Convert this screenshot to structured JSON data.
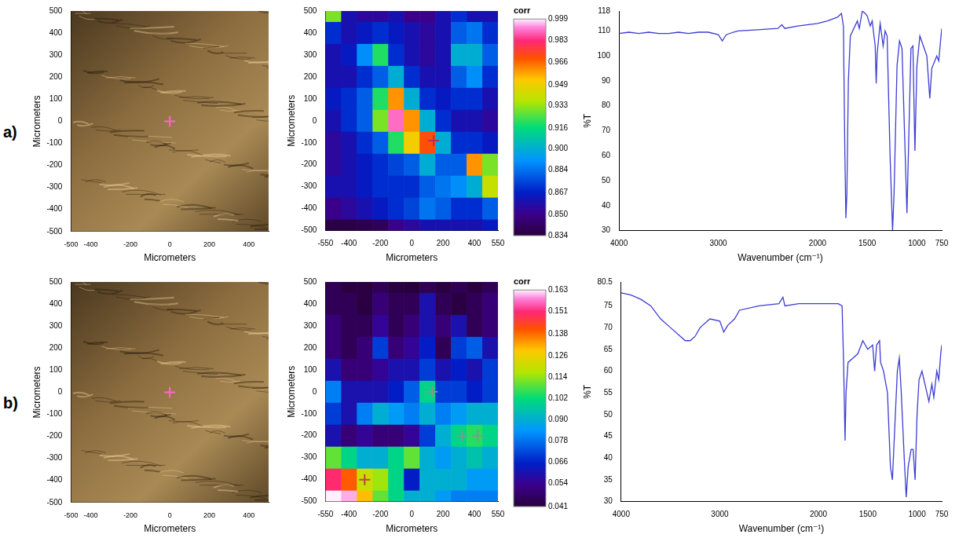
{
  "panel_labels": [
    "a)",
    "b)"
  ],
  "chart_data": [
    {
      "type": "image",
      "xlabel": "Micrometers",
      "ylabel": "Micrometers",
      "xlim": [
        -500,
        500
      ],
      "ylim": [
        -500,
        500
      ],
      "xticks": [
        -500,
        -400,
        -200,
        0,
        200,
        400
      ],
      "yticks": [
        -500,
        -400,
        -300,
        -200,
        -100,
        0,
        100,
        200,
        300,
        400,
        500
      ],
      "grid": false,
      "series": [
        {
          "x": [
            0
          ],
          "values": [
            0
          ],
          "marker": "cross",
          "color": "#ff66cc"
        }
      ]
    },
    {
      "type": "heatmap",
      "xlabel": "Micrometers",
      "ylabel": "Micrometers",
      "xlim": [
        -550,
        550
      ],
      "ylim": [
        -500,
        500
      ],
      "xticks": [
        -550,
        -400,
        -200,
        0,
        200,
        400,
        550
      ],
      "yticks": [
        -500,
        -400,
        -300,
        -200,
        -100,
        0,
        100,
        200,
        300,
        400,
        500
      ],
      "grid": false,
      "x": [
        -500,
        -400,
        -300,
        -200,
        -100,
        0,
        100,
        200,
        300,
        400,
        500
      ],
      "y": [
        500,
        400,
        300,
        200,
        100,
        0,
        -100,
        -200,
        -300,
        -400,
        -500
      ],
      "cells": [
        [
          0.93,
          0.86,
          0.855,
          0.855,
          0.86,
          0.85,
          0.85,
          0.86,
          0.87,
          0.86,
          0.86
        ],
        [
          0.87,
          0.86,
          0.865,
          0.87,
          0.865,
          0.86,
          0.855,
          0.86,
          0.88,
          0.885,
          0.87
        ],
        [
          0.86,
          0.865,
          0.89,
          0.92,
          0.87,
          0.86,
          0.855,
          0.86,
          0.9,
          0.9,
          0.88
        ],
        [
          0.86,
          0.86,
          0.87,
          0.88,
          0.9,
          0.87,
          0.86,
          0.86,
          0.88,
          0.89,
          0.87
        ],
        [
          0.865,
          0.87,
          0.88,
          0.92,
          0.96,
          0.9,
          0.87,
          0.865,
          0.87,
          0.87,
          0.86
        ],
        [
          0.86,
          0.87,
          0.88,
          0.93,
          0.99,
          0.96,
          0.9,
          0.87,
          0.86,
          0.86,
          0.855
        ],
        [
          0.855,
          0.86,
          0.87,
          0.88,
          0.92,
          0.95,
          0.97,
          0.9,
          0.87,
          0.87,
          0.865
        ],
        [
          0.855,
          0.86,
          0.865,
          0.87,
          0.875,
          0.88,
          0.9,
          0.88,
          0.88,
          0.96,
          0.93
        ],
        [
          0.86,
          0.86,
          0.865,
          0.87,
          0.87,
          0.87,
          0.88,
          0.885,
          0.89,
          0.9,
          0.94
        ],
        [
          0.85,
          0.855,
          0.86,
          0.865,
          0.87,
          0.875,
          0.885,
          0.88,
          0.87,
          0.87,
          0.88
        ],
        [
          0.836,
          0.836,
          0.838,
          0.84,
          0.85,
          0.855,
          0.86,
          0.86,
          0.86,
          0.86,
          0.865
        ]
      ],
      "colorbar": {
        "title": "corr",
        "range": [
          0.834,
          0.999
        ],
        "ticks": [
          0.834,
          {
            "value": 0.85,
            "label": "0.850"
          },
          0.867,
          0.884,
          {
            "value": 0.9,
            "label": "0.900"
          },
          0.916,
          0.933,
          0.949,
          0.966,
          0.983,
          0.999
        ]
      },
      "series": [
        {
          "x": [
            140
          ],
          "values": [
            -90
          ],
          "marker": "cross",
          "color": "#b03060"
        }
      ]
    },
    {
      "type": "line",
      "xlabel": "Wavenumber (cm⁻¹)",
      "ylabel": "%T",
      "xlim": [
        4000,
        750
      ],
      "ylim": [
        30,
        118
      ],
      "xticks": [
        4000,
        3000,
        2000,
        1500,
        1000,
        750
      ],
      "yticks": [
        30,
        40,
        50,
        60,
        70,
        80,
        90,
        100,
        110,
        118
      ],
      "grid": false,
      "color": "#3c3cd2",
      "x": [
        4000,
        3900,
        3800,
        3700,
        3600,
        3500,
        3400,
        3300,
        3200,
        3100,
        3000,
        2960,
        2920,
        2850,
        2800,
        2600,
        2400,
        2360,
        2330,
        2200,
        2000,
        1900,
        1800,
        1760,
        1740,
        1725,
        1715,
        1705,
        1690,
        1670,
        1600,
        1580,
        1550,
        1520,
        1500,
        1470,
        1450,
        1420,
        1410,
        1400,
        1370,
        1340,
        1320,
        1300,
        1270,
        1245,
        1230,
        1200,
        1175,
        1150,
        1125,
        1100,
        1080,
        1060,
        1040,
        1020,
        1000,
        970,
        900,
        870,
        850,
        800,
        780,
        750
      ],
      "values": [
        109,
        109.5,
        109,
        109.5,
        109,
        109,
        109.5,
        109,
        109.5,
        109.5,
        108.5,
        106,
        108.5,
        109.5,
        110,
        110.5,
        111,
        112.5,
        111,
        112,
        113,
        114,
        115.5,
        117,
        112,
        60,
        35,
        45,
        90,
        108,
        114,
        111,
        118,
        117,
        116,
        112,
        114,
        104,
        89,
        101,
        113,
        104,
        110,
        108,
        60,
        30,
        45,
        96,
        106,
        103,
        70,
        37,
        70,
        103,
        104,
        62,
        96,
        108,
        100,
        83,
        95,
        100,
        98,
        111
      ]
    },
    {
      "type": "image",
      "xlabel": "Micrometers",
      "ylabel": "Micrometers",
      "xlim": [
        -500,
        500
      ],
      "ylim": [
        -500,
        500
      ],
      "xticks": [
        -500,
        -400,
        -200,
        0,
        200,
        400
      ],
      "yticks": [
        -500,
        -400,
        -300,
        -200,
        -100,
        0,
        100,
        200,
        300,
        400,
        500
      ],
      "grid": false,
      "series": [
        {
          "x": [
            0
          ],
          "values": [
            0
          ],
          "marker": "cross",
          "color": "#ff66cc"
        }
      ]
    },
    {
      "type": "heatmap",
      "xlabel": "Micrometers",
      "ylabel": "Micrometers",
      "xlim": [
        -550,
        550
      ],
      "ylim": [
        -500,
        500
      ],
      "xticks": [
        -550,
        -400,
        -200,
        0,
        200,
        400,
        550
      ],
      "yticks": [
        -500,
        -400,
        -300,
        -200,
        -100,
        0,
        100,
        200,
        300,
        400,
        500
      ],
      "grid": false,
      "x": [
        -500,
        -400,
        -300,
        -200,
        -100,
        0,
        100,
        200,
        300,
        400,
        500
      ],
      "y": [
        500,
        400,
        300,
        200,
        100,
        0,
        -100,
        -200,
        -300,
        -400,
        -500
      ],
      "cells": [
        [
          0.045,
          0.042,
          0.042,
          0.045,
          0.042,
          0.041,
          0.045,
          0.042,
          0.045,
          0.042,
          0.045
        ],
        [
          0.045,
          0.045,
          0.042,
          0.05,
          0.045,
          0.045,
          0.06,
          0.045,
          0.042,
          0.045,
          0.05
        ],
        [
          0.05,
          0.045,
          0.045,
          0.055,
          0.045,
          0.05,
          0.06,
          0.05,
          0.06,
          0.045,
          0.05
        ],
        [
          0.05,
          0.045,
          0.05,
          0.07,
          0.05,
          0.055,
          0.065,
          0.045,
          0.07,
          0.075,
          0.06
        ],
        [
          0.06,
          0.05,
          0.05,
          0.055,
          0.06,
          0.06,
          0.07,
          0.06,
          0.065,
          0.06,
          0.07
        ],
        [
          0.08,
          0.06,
          0.06,
          0.06,
          0.065,
          0.075,
          0.1,
          0.07,
          0.07,
          0.065,
          0.07
        ],
        [
          0.07,
          0.06,
          0.08,
          0.09,
          0.085,
          0.08,
          0.09,
          0.08,
          0.085,
          0.09,
          0.09
        ],
        [
          0.06,
          0.05,
          0.055,
          0.05,
          0.05,
          0.055,
          0.07,
          0.09,
          0.1,
          0.105,
          0.1
        ],
        [
          0.11,
          0.1,
          0.09,
          0.09,
          0.1,
          0.11,
          0.09,
          0.085,
          0.09,
          0.095,
          0.09
        ],
        [
          0.15,
          0.14,
          0.12,
          0.115,
          0.1,
          0.065,
          0.09,
          0.09,
          0.09,
          0.085,
          0.085
        ],
        [
          0.163,
          0.16,
          0.13,
          0.11,
          0.1,
          0.09,
          0.09,
          0.085,
          0.08,
          0.08,
          0.08
        ]
      ],
      "colorbar": {
        "title": "corr",
        "range": [
          0.041,
          0.163
        ],
        "ticks": [
          0.041,
          0.054,
          0.066,
          0.078,
          {
            "value": 0.09,
            "label": "0.090"
          },
          0.102,
          0.114,
          0.126,
          0.138,
          0.151,
          0.163
        ]
      },
      "series": [
        {
          "x": [
            130,
            320,
            420
          ],
          "values": [
            0,
            -200,
            -200
          ],
          "marker": "cross",
          "color": "#909090"
        },
        {
          "x": [
            -300
          ],
          "values": [
            -400
          ],
          "marker": "cross",
          "color": "#c04040"
        }
      ]
    },
    {
      "type": "line",
      "xlabel": "Wavenumber (cm⁻¹)",
      "ylabel": "%T",
      "xlim": [
        4000,
        750
      ],
      "ylim": [
        30,
        80.5
      ],
      "xticks": [
        4000,
        3000,
        2000,
        1500,
        1000,
        750
      ],
      "yticks": [
        30,
        35,
        40,
        45,
        50,
        55,
        60,
        65,
        70,
        75,
        80.5
      ],
      "grid": false,
      "color": "#3c3cd2",
      "x": [
        4000,
        3900,
        3800,
        3700,
        3600,
        3500,
        3400,
        3350,
        3300,
        3250,
        3200,
        3100,
        3000,
        2960,
        2920,
        2850,
        2800,
        2600,
        2400,
        2360,
        2340,
        2200,
        2000,
        1800,
        1760,
        1745,
        1730,
        1720,
        1700,
        1650,
        1600,
        1550,
        1500,
        1450,
        1430,
        1410,
        1380,
        1370,
        1340,
        1300,
        1270,
        1250,
        1230,
        1200,
        1180,
        1160,
        1130,
        1110,
        1090,
        1060,
        1040,
        1020,
        1000,
        980,
        950,
        900,
        880,
        850,
        830,
        800,
        780,
        760,
        750
      ],
      "values": [
        78,
        77.5,
        76.5,
        75,
        72,
        70,
        68,
        67,
        67,
        68,
        70,
        72,
        71.5,
        69,
        70.5,
        72,
        74,
        75,
        75.5,
        77,
        75,
        75.5,
        75.5,
        75.5,
        75,
        62,
        44,
        55,
        62,
        63,
        64,
        67,
        65,
        66,
        60,
        66,
        67,
        62,
        60,
        55,
        38,
        35,
        45,
        60,
        63,
        55,
        40,
        31,
        38,
        42,
        42,
        35,
        50,
        58,
        60,
        55,
        53,
        57,
        54,
        60,
        58,
        64,
        66
      ]
    }
  ]
}
